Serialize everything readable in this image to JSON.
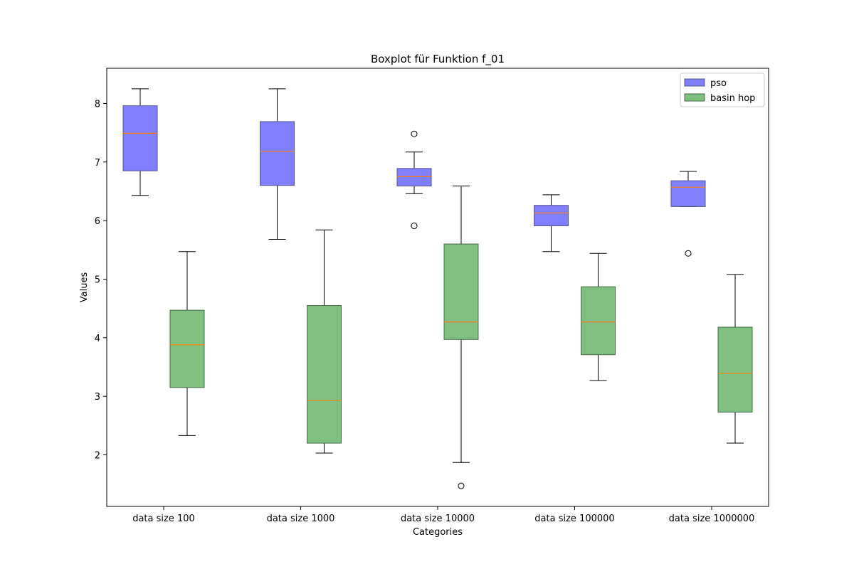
{
  "chart_data": {
    "type": "boxplot",
    "title": "Boxplot für Funktion f_01",
    "xlabel": "Categories",
    "ylabel": "Values",
    "ylim": [
      1.12,
      8.6
    ],
    "yticks": [
      2,
      3,
      4,
      5,
      6,
      7,
      8
    ],
    "grid": false,
    "legend_position": "top-right",
    "categories": [
      "data size 100",
      "data size 1000",
      "data size 10000",
      "data size 100000",
      "data size 1000000"
    ],
    "series": [
      {
        "name": "pso",
        "fill_color": "#7f7fff",
        "edge_color": "#55558f",
        "boxes": [
          {
            "whisker_low": 6.43,
            "q1": 6.85,
            "median": 7.49,
            "q3": 7.96,
            "whisker_high": 8.25,
            "outliers": []
          },
          {
            "whisker_low": 5.68,
            "q1": 6.6,
            "median": 7.18,
            "q3": 7.69,
            "whisker_high": 8.25,
            "outliers": []
          },
          {
            "whisker_low": 6.46,
            "q1": 6.59,
            "median": 6.75,
            "q3": 6.89,
            "whisker_high": 7.17,
            "outliers": [
              7.48,
              5.91
            ]
          },
          {
            "whisker_low": 5.47,
            "q1": 5.91,
            "median": 6.13,
            "q3": 6.26,
            "whisker_high": 6.44,
            "outliers": []
          },
          {
            "whisker_low": 6.24,
            "q1": 6.24,
            "median": 6.57,
            "q3": 6.68,
            "whisker_high": 6.84,
            "outliers": [
              5.44
            ]
          }
        ]
      },
      {
        "name": "basin hop",
        "fill_color": "#7fbf7f",
        "edge_color": "#4a6a4a",
        "boxes": [
          {
            "whisker_low": 2.33,
            "q1": 3.15,
            "median": 3.88,
            "q3": 4.47,
            "whisker_high": 5.47,
            "outliers": []
          },
          {
            "whisker_low": 2.03,
            "q1": 2.2,
            "median": 2.93,
            "q3": 4.55,
            "whisker_high": 5.84,
            "outliers": []
          },
          {
            "whisker_low": 1.87,
            "q1": 3.97,
            "median": 4.27,
            "q3": 5.6,
            "whisker_high": 6.59,
            "outliers": [
              1.47
            ]
          },
          {
            "whisker_low": 3.27,
            "q1": 3.71,
            "median": 4.27,
            "q3": 4.87,
            "whisker_high": 5.44,
            "outliers": []
          },
          {
            "whisker_low": 2.2,
            "q1": 2.73,
            "median": 3.39,
            "q3": 4.18,
            "whisker_high": 5.08,
            "outliers": []
          }
        ]
      }
    ],
    "median_color": "#ff7f0e"
  }
}
